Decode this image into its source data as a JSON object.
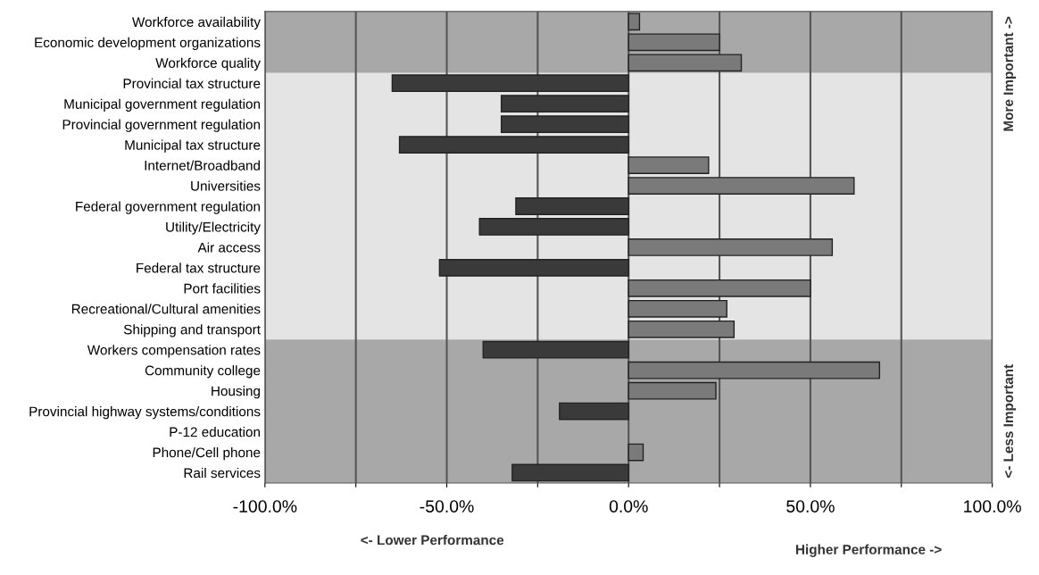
{
  "chart_data": {
    "type": "bar",
    "orientation": "horizontal",
    "categories": [
      "Workforce availability",
      "Economic development organizations",
      "Workforce quality",
      "Provincial tax structure",
      "Municipal government regulation",
      "Provincial government regulation",
      "Municipal tax structure",
      "Internet/Broadband",
      "Universities",
      "Federal government regulation",
      "Utility/Electricity",
      "Air access",
      "Federal tax structure",
      "Port facilities",
      "Recreational/Cultural amenities",
      "Shipping and transport",
      "Workers compensation rates",
      "Community college",
      "Housing",
      "Provincial highway systems/conditions",
      "P-12 education",
      "Phone/Cell phone",
      "Rail services"
    ],
    "values": [
      0.03,
      0.25,
      0.31,
      -0.65,
      -0.35,
      -0.35,
      -0.63,
      0.22,
      0.62,
      -0.31,
      -0.41,
      0.56,
      -0.52,
      0.5,
      0.27,
      0.29,
      -0.4,
      0.69,
      0.24,
      -0.19,
      null,
      0.04,
      -0.32
    ],
    "colors": [
      "#7a7a7a",
      "#7a7a7a",
      "#7a7a7a",
      "#3a3a3a",
      "#3a3a3a",
      "#3a3a3a",
      "#3a3a3a",
      "#7a7a7a",
      "#7a7a7a",
      "#3a3a3a",
      "#3a3a3a",
      "#7a7a7a",
      "#3a3a3a",
      "#7a7a7a",
      "#7a7a7a",
      "#7a7a7a",
      "#3a3a3a",
      "#7a7a7a",
      "#7a7a7a",
      "#3a3a3a",
      null,
      "#7a7a7a",
      "#3a3a3a"
    ],
    "xlim": [
      -1,
      1
    ],
    "xticks": [
      {
        "value": -1,
        "label": "-100.0%"
      },
      {
        "value": -0.75,
        "label": null
      },
      {
        "value": -0.5,
        "label": "-50.0%"
      },
      {
        "value": -0.25,
        "label": null
      },
      {
        "value": 0,
        "label": "0.0%"
      },
      {
        "value": 0.25,
        "label": null
      },
      {
        "value": 0.5,
        "label": "50.0%"
      },
      {
        "value": 0.75,
        "label": null
      },
      {
        "value": 1,
        "label": "100.0%"
      }
    ],
    "grid": "x",
    "bands": [
      {
        "axis": "y",
        "from": "Workforce availability",
        "to": "Workforce quality",
        "color": "#a8a8a8"
      },
      {
        "axis": "y",
        "from": "Provincial tax structure",
        "to": "Shipping and transport",
        "color": "#e4e4e4"
      },
      {
        "axis": "y",
        "from": "Workers compensation rates",
        "to": "Rail services",
        "color": "#a8a8a8"
      }
    ],
    "annotations": [
      "<- Lower Performance",
      "Higher Performance ->",
      "More Important ->",
      "<- Less Important"
    ]
  }
}
